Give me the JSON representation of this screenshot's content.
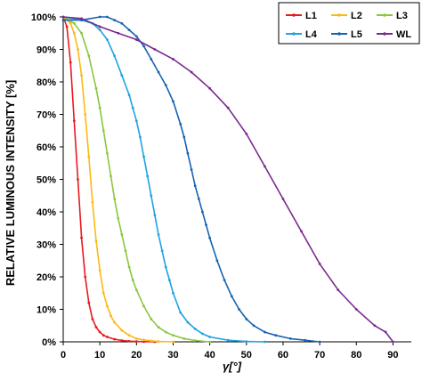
{
  "chart_data": {
    "type": "line",
    "xlabel": "γ[°]",
    "ylabel": "RELATIVE LUMINOUS INTENSITY [%]",
    "xlim": [
      0,
      95
    ],
    "ylim": [
      0,
      100
    ],
    "x_ticks": [
      0,
      10,
      20,
      30,
      40,
      50,
      60,
      70,
      80,
      90
    ],
    "y_ticks": [
      0,
      10,
      20,
      30,
      40,
      50,
      60,
      70,
      80,
      90,
      100
    ],
    "y_tick_labels": [
      "0%",
      "10%",
      "20%",
      "30%",
      "40%",
      "50%",
      "60%",
      "70%",
      "80%",
      "90%",
      "100%"
    ],
    "grid": false,
    "legend_position": "top-right",
    "series": [
      {
        "name": "L1",
        "color": "#e8191f",
        "x": [
          0,
          1,
          2,
          3,
          4,
          5,
          6,
          7,
          8,
          9,
          10,
          11,
          12,
          14,
          16,
          18,
          20,
          22,
          25
        ],
        "y": [
          100,
          97,
          86,
          68,
          50,
          32,
          20,
          12,
          7,
          4.5,
          3,
          2,
          1.5,
          0.8,
          0.4,
          0.2,
          0.1,
          0.05,
          0
        ]
      },
      {
        "name": "L2",
        "color": "#fdb913",
        "x": [
          0,
          2,
          3,
          4,
          5,
          6,
          7,
          8,
          9,
          10,
          11,
          12,
          13,
          14,
          16,
          18,
          20,
          22,
          24,
          26,
          30
        ],
        "y": [
          100,
          98,
          95,
          90,
          82,
          70,
          57,
          43,
          31,
          22,
          15,
          11,
          8,
          6,
          3.5,
          2,
          1,
          0.6,
          0.3,
          0.1,
          0
        ]
      },
      {
        "name": "L3",
        "color": "#8cc63e",
        "x": [
          0,
          3,
          5,
          7,
          9,
          10,
          11,
          12,
          13,
          14,
          15,
          16,
          17,
          18,
          19,
          20,
          22,
          24,
          26,
          28,
          30,
          33,
          36,
          40
        ],
        "y": [
          100,
          98,
          95,
          88,
          78,
          72,
          65,
          58,
          51,
          44,
          38,
          33,
          28,
          23,
          19,
          16,
          11,
          7,
          4.5,
          3,
          2,
          1,
          0.4,
          0
        ]
      },
      {
        "name": "L4",
        "color": "#1ea3e0",
        "x": [
          0,
          5,
          8,
          10,
          12,
          14,
          16,
          18,
          19,
          20,
          21,
          22,
          23,
          24,
          25,
          26,
          27,
          28,
          29,
          30,
          32,
          34,
          36,
          38,
          40,
          45,
          50,
          55
        ],
        "y": [
          100,
          99,
          98,
          96,
          93,
          88,
          82,
          76,
          72,
          68,
          63,
          57,
          51,
          45,
          39,
          33,
          28,
          23,
          19,
          15,
          9,
          6,
          4,
          2.5,
          1.5,
          0.5,
          0.1,
          0
        ]
      },
      {
        "name": "L5",
        "color": "#1763b0",
        "x": [
          0,
          5,
          10,
          12,
          14,
          16,
          18,
          20,
          22,
          24,
          26,
          28,
          30,
          32,
          33,
          34,
          35,
          36,
          37,
          38,
          39,
          40,
          42,
          44,
          46,
          48,
          50,
          52,
          55,
          58,
          62,
          66,
          70
        ],
        "y": [
          99,
          99,
          100,
          100,
          99,
          98,
          96,
          94,
          91,
          87,
          83,
          79,
          74,
          67,
          63,
          58,
          53,
          48,
          44,
          40,
          36,
          32,
          25,
          19,
          14,
          10,
          7,
          5,
          3,
          2,
          1,
          0.5,
          0
        ]
      },
      {
        "name": "WL",
        "color": "#7a2a8e",
        "x": [
          0,
          5,
          10,
          15,
          20,
          25,
          30,
          35,
          40,
          45,
          50,
          55,
          60,
          65,
          70,
          75,
          80,
          85,
          88,
          90
        ],
        "y": [
          100,
          99.5,
          97,
          95,
          93,
          90,
          87,
          83,
          78,
          72,
          64,
          54,
          44,
          34,
          24,
          16,
          10,
          5,
          3,
          0
        ]
      }
    ]
  }
}
